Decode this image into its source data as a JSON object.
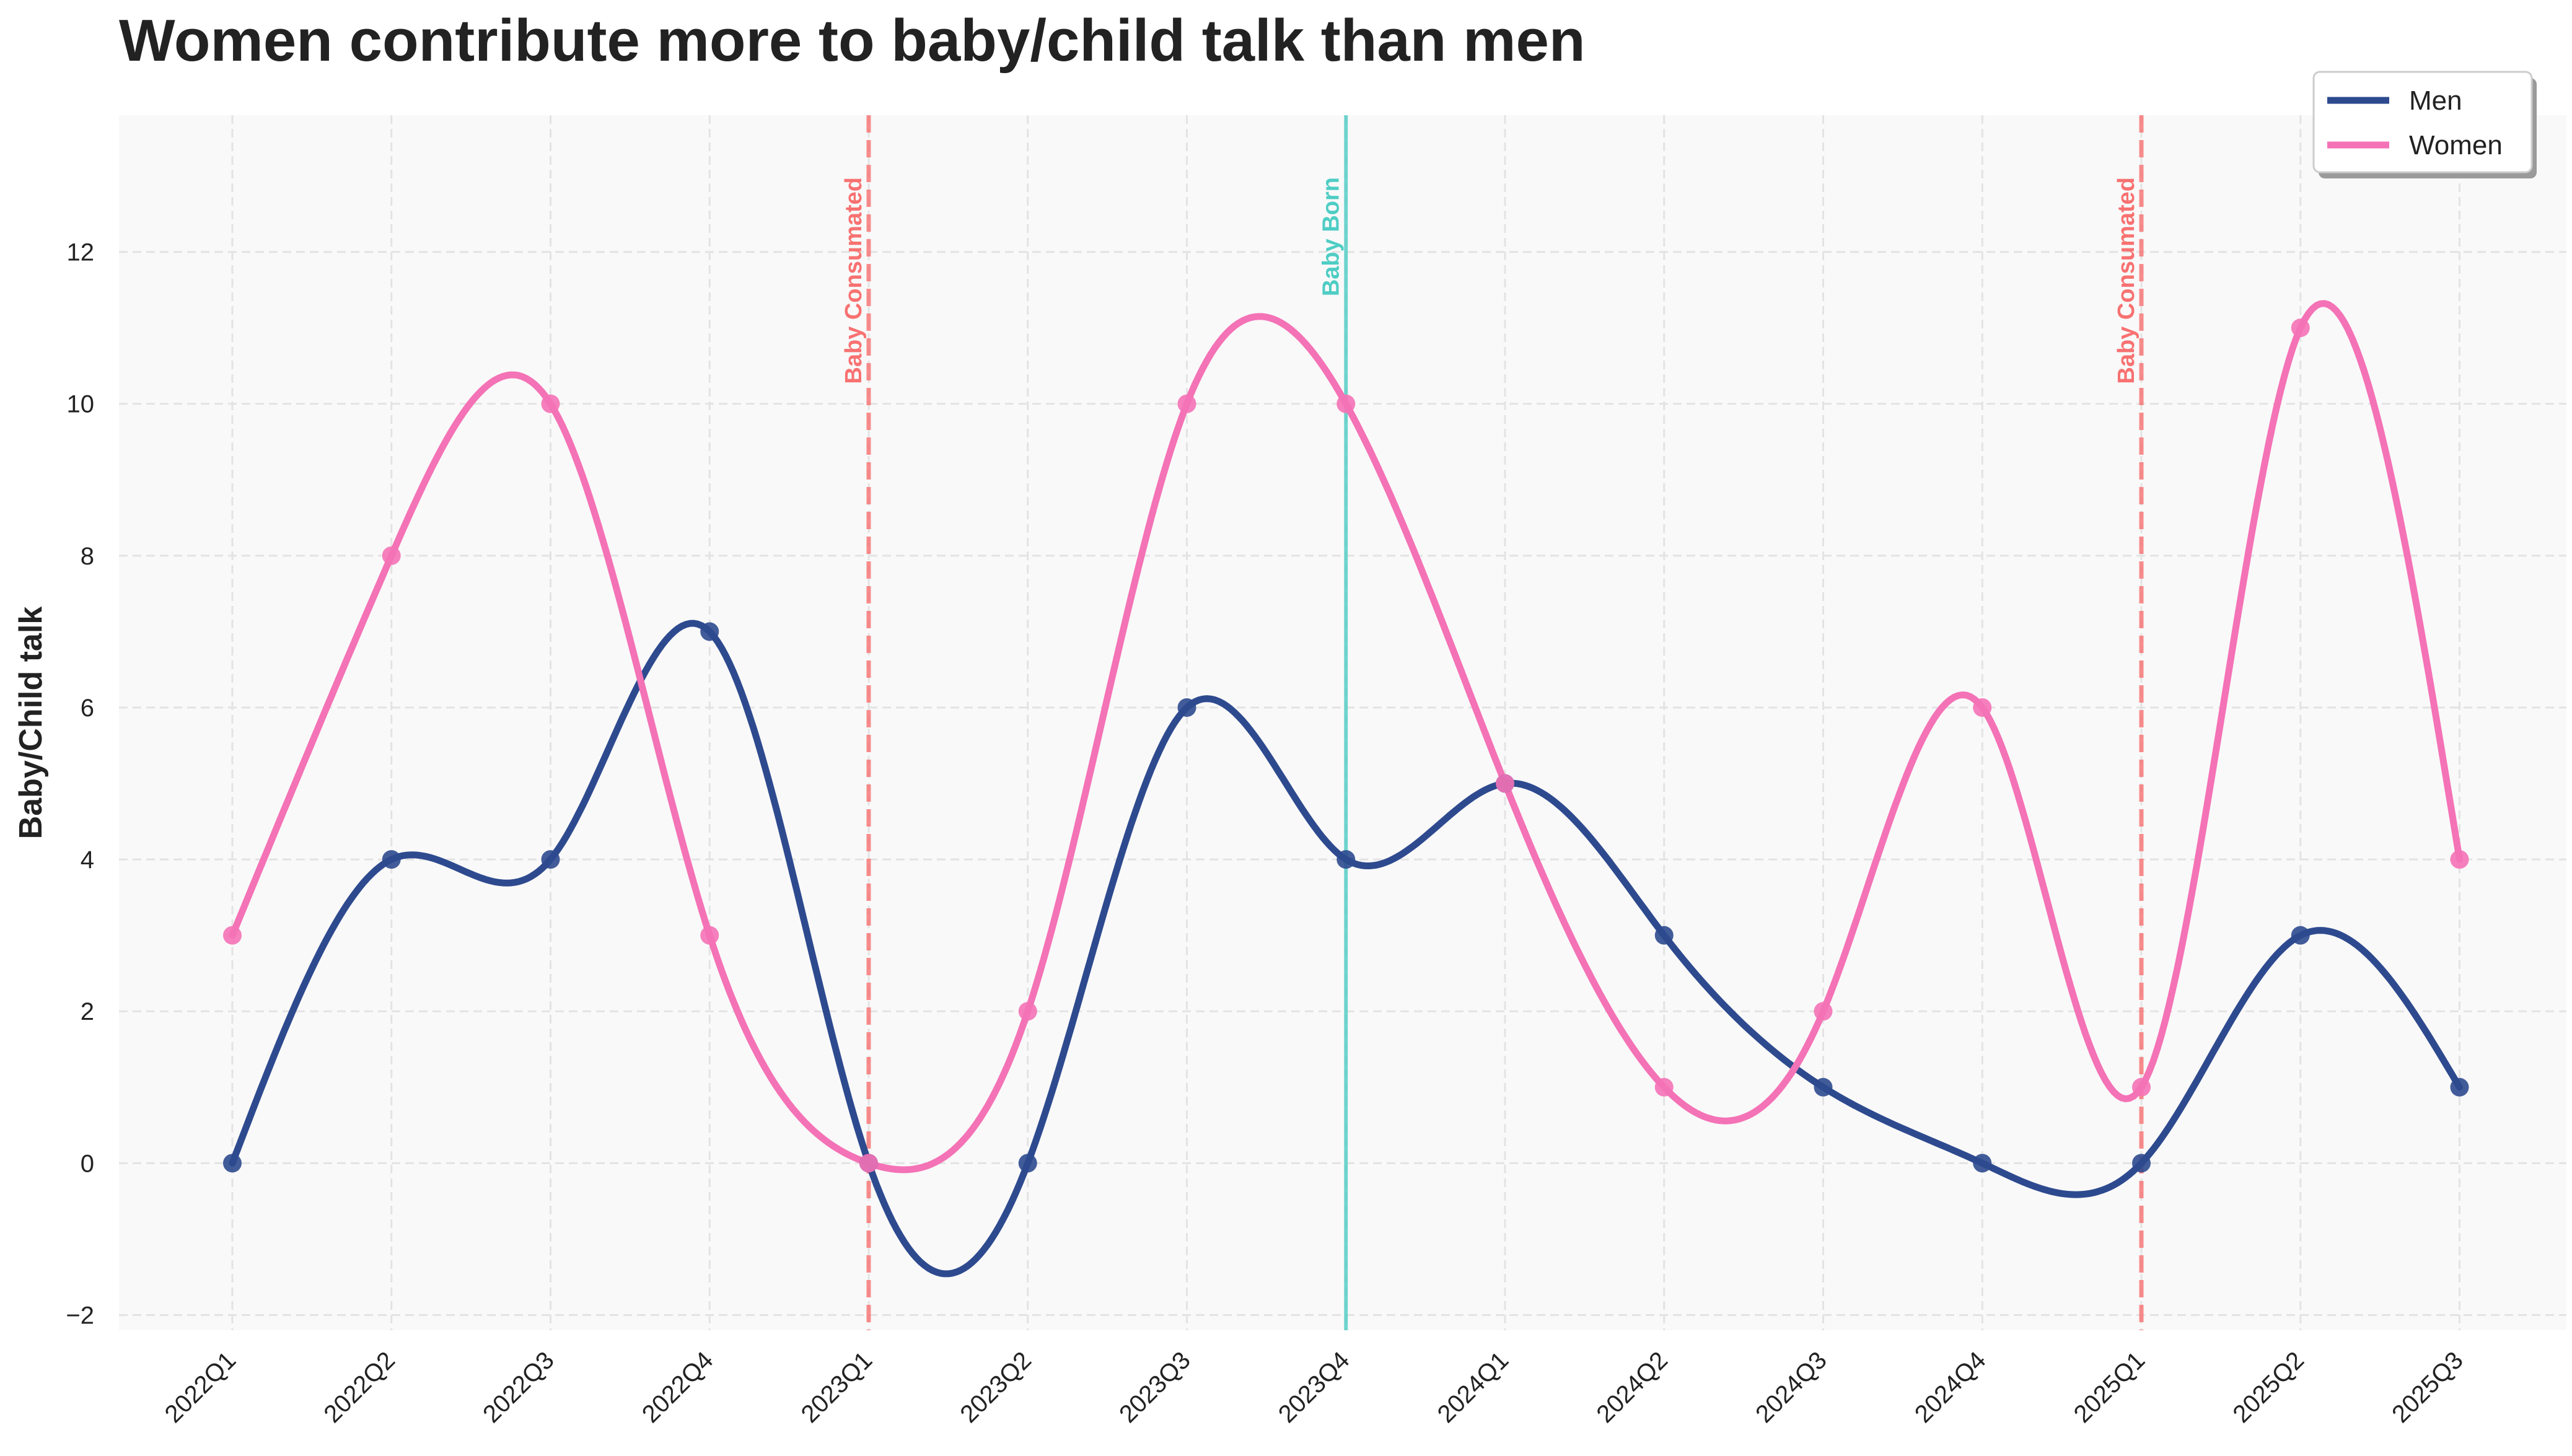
{
  "chart_data": {
    "type": "line",
    "title": "Women contribute more to baby/child talk than men",
    "xlabel": "",
    "ylabel": "Baby/Child talk",
    "categories": [
      "2022Q1",
      "2022Q2",
      "2022Q3",
      "2022Q4",
      "2023Q1",
      "2023Q2",
      "2023Q3",
      "2023Q4",
      "2024Q1",
      "2024Q2",
      "2024Q3",
      "2024Q4",
      "2025Q1",
      "2025Q2",
      "2025Q3"
    ],
    "series": [
      {
        "name": "Men",
        "color": "#2e4a8f",
        "values": [
          0,
          4,
          4,
          7,
          0,
          0,
          6,
          4,
          5,
          3,
          1,
          0,
          0,
          3,
          1
        ]
      },
      {
        "name": "Women",
        "color": "#f472b6",
        "values": [
          3,
          8,
          10,
          3,
          0,
          2,
          10,
          10,
          5,
          1,
          2,
          6,
          1,
          11,
          4
        ]
      }
    ],
    "ylim": [
      -2.2,
      13.8
    ],
    "yticks": [
      -2,
      0,
      2,
      4,
      6,
      8,
      10,
      12
    ],
    "grid": true,
    "legend": "top-right",
    "annotations": [
      {
        "category": "2023Q1",
        "label": "Baby Consumated",
        "color": "#f87171",
        "style": "dashed"
      },
      {
        "category": "2023Q4",
        "label": "Baby Born",
        "color": "#4ecdc4",
        "style": "solid"
      },
      {
        "category": "2025Q1",
        "label": "Baby Consumated",
        "color": "#f87171",
        "style": "dashed"
      }
    ]
  }
}
